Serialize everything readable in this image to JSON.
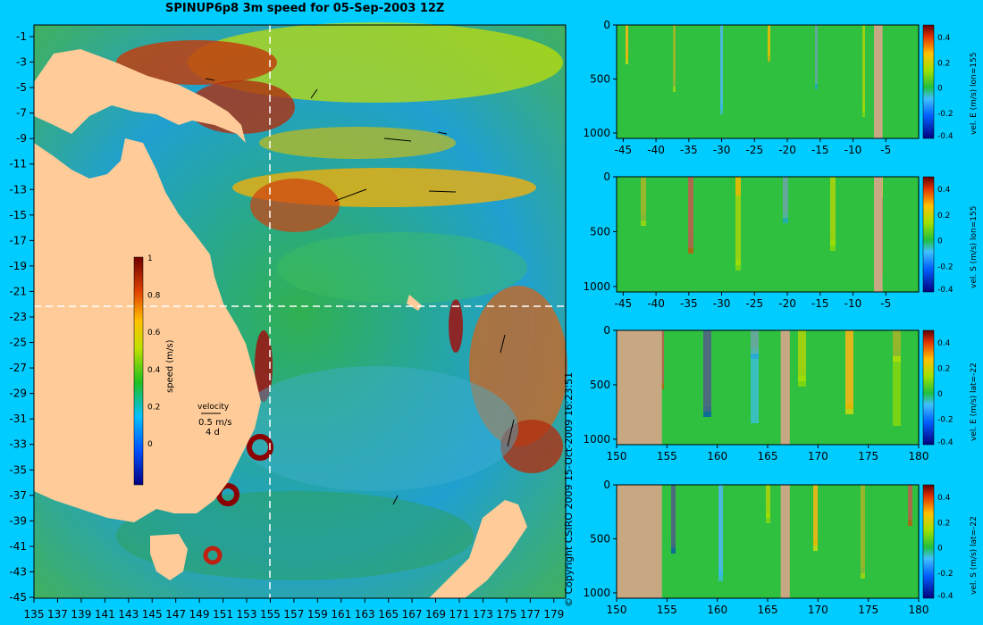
{
  "title": "SPINUP6p8 3m speed for 05-Sep-2003 12Z",
  "copyright": "© Copyright CSIRO 2009  15-Oct-2009 16:23:51",
  "map": {
    "lon_ticks": [
      "135",
      "137",
      "139",
      "141",
      "143",
      "145",
      "147",
      "149",
      "151",
      "153",
      "155",
      "157",
      "159",
      "161",
      "163",
      "165",
      "167",
      "169",
      "171",
      "173",
      "175",
      "177",
      "179"
    ],
    "lat_ticks": [
      "-1",
      "-3",
      "-5",
      "-7",
      "-9",
      "-11",
      "-13",
      "-15",
      "-17",
      "-19",
      "-21",
      "-23",
      "-25",
      "-27",
      "-29",
      "-31",
      "-33",
      "-35",
      "-37",
      "-39",
      "-41",
      "-43",
      "-45"
    ],
    "colorbar_label": "speed (m/s)",
    "colorbar_ticks": [
      "1",
      "0.8",
      "0.6",
      "0.4",
      "0.2",
      "0"
    ],
    "velocity_label": "velocity",
    "velocity_scale": "0.5 m/s",
    "velocity_days": "4 d",
    "section_lines": {
      "lon": 155,
      "lat": -22
    }
  },
  "colors": {
    "background": "#00ccff",
    "land": "#ffcc99",
    "section_land": "#c8a882"
  },
  "chart_data": [
    {
      "type": "heatmap",
      "title": "SPINUP6p8 3m speed for 05-Sep-2003 12Z",
      "xlabel": "",
      "ylabel": "",
      "xlim": [
        135,
        180
      ],
      "ylim": [
        -45,
        0
      ],
      "colorbar": {
        "label": "speed (m/s)",
        "range": [
          0,
          1
        ]
      }
    },
    {
      "type": "heatmap",
      "colorbar": {
        "label": "vel. E (m/s) lon=155",
        "range": [
          -0.4,
          0.5
        ],
        "ticks": [
          "0.4",
          "0.2",
          "0",
          "-0.2",
          "-0.4"
        ]
      },
      "x_ticks": [
        "-45",
        "-40",
        "-35",
        "-30",
        "-25",
        "-20",
        "-15",
        "-10",
        "-5"
      ],
      "y_ticks": [
        "0",
        "500",
        "1000"
      ],
      "xlim": [
        -46,
        0
      ],
      "ylim": [
        1050,
        0
      ],
      "land_x": [
        -6.8,
        -5.5
      ]
    },
    {
      "type": "heatmap",
      "colorbar": {
        "label": "vel. S (m/s) lon=155",
        "range": [
          -0.4,
          0.5
        ],
        "ticks": [
          "0.4",
          "0.2",
          "0",
          "-0.2",
          "-0.4"
        ]
      },
      "x_ticks": [
        "-45",
        "-40",
        "-35",
        "-30",
        "-25",
        "-20",
        "-15",
        "-10",
        "-5"
      ],
      "y_ticks": [
        "0",
        "500",
        "1000"
      ],
      "xlim": [
        -46,
        0
      ],
      "ylim": [
        1050,
        0
      ],
      "land_x": [
        -6.8,
        -5.5
      ]
    },
    {
      "type": "heatmap",
      "colorbar": {
        "label": "vel. E (m/s) lat=-22",
        "range": [
          -0.4,
          0.5
        ],
        "ticks": [
          "0.4",
          "0.2",
          "0",
          "-0.2",
          "-0.4"
        ]
      },
      "x_ticks": [
        "150",
        "155",
        "160",
        "165",
        "170",
        "175",
        "180"
      ],
      "y_ticks": [
        "0",
        "500",
        "1000"
      ],
      "xlim": [
        150,
        180
      ],
      "ylim": [
        1050,
        0
      ],
      "land_x": [
        [
          150,
          154.5
        ],
        [
          166.3,
          167.2
        ]
      ]
    },
    {
      "type": "heatmap",
      "colorbar": {
        "label": "vel. S (m/s) lat=-22",
        "range": [
          -0.4,
          0.5
        ],
        "ticks": [
          "0.4",
          "0.2",
          "0",
          "-0.2",
          "-0.4"
        ]
      },
      "x_ticks": [
        "150",
        "155",
        "160",
        "165",
        "170",
        "175",
        "180"
      ],
      "y_ticks": [
        "0",
        "500",
        "1000"
      ],
      "xlim": [
        150,
        180
      ],
      "ylim": [
        1050,
        0
      ],
      "land_x": [
        [
          150,
          154.5
        ],
        [
          166.3,
          167.2
        ]
      ]
    }
  ]
}
